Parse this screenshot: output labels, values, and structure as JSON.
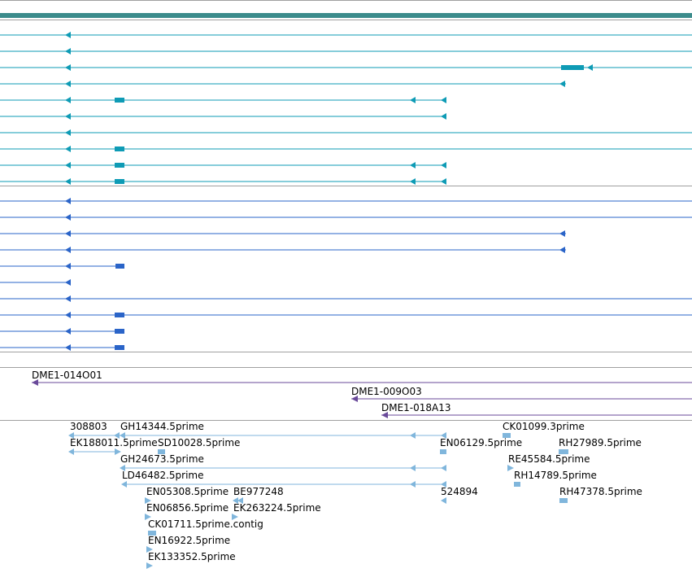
{
  "tracks": {
    "transcripts_a": {
      "name": "transcript-track-upper",
      "color": "#0e9bb5",
      "rows": 10
    },
    "transcripts_b": {
      "name": "transcript-track-lower",
      "color": "#2a64c8",
      "rows": 10
    },
    "clones": {
      "color": "#6a4a9a",
      "labels": [
        "DME1-014O01",
        "DME1-009O03",
        "DME1-018A13"
      ]
    },
    "ests": {
      "color": "#80b6dc",
      "labels": [
        "308803",
        "GH14344.5prime",
        "CK01099.3prime",
        "EK188011.5prime",
        "SD10028.5prime",
        "EN06129.5prime",
        "RH27989.5prime",
        "GH24673.5prime",
        "RE45584.5prime",
        "LD46482.5prime",
        "RH14789.5prime",
        "EN05308.5prime",
        "BE977248",
        "524894",
        "RH47378.5prime",
        "EN06856.5prime",
        "EK263224.5prime",
        "CK01711.5prime.contig",
        "EN16922.5prime",
        "EK133352.5prime"
      ]
    }
  },
  "colors": {
    "frame": "#a0a0a0",
    "header_bar": "#3c8c8c"
  }
}
